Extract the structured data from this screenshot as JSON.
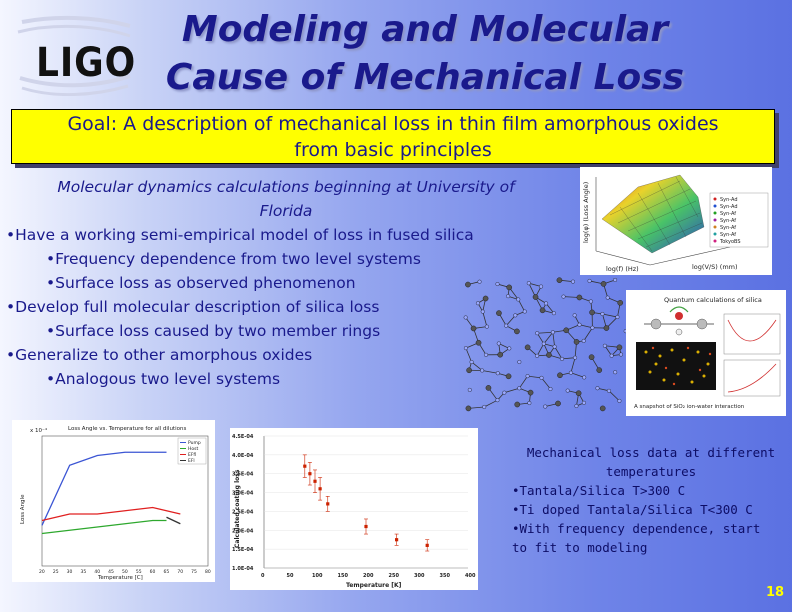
{
  "logo": {
    "text": "LIGO"
  },
  "title": {
    "line1": "Modeling and Molecular",
    "line2": "Cause of Mechanical Loss"
  },
  "goal": {
    "line1": "Goal: A description of mechanical loss in thin film amorphous oxides",
    "line2": "from basic principles"
  },
  "intro": {
    "line1": "Molecular dynamics calculations beginning at University of",
    "line2": "Florida"
  },
  "bullets": [
    {
      "level": 1,
      "text": "Have a working semi-empirical model of loss in fused silica"
    },
    {
      "level": 2,
      "text": "Frequency dependence from two level systems"
    },
    {
      "level": 2,
      "text": "Surface loss as observed phenomenon"
    },
    {
      "level": 1,
      "text": "Develop full molecular description of silica loss"
    },
    {
      "level": 2,
      "text": "Surface loss caused by two member rings"
    },
    {
      "level": 1,
      "text": "Generalize to other amorphous oxides"
    },
    {
      "level": 2,
      "text": "Analogous two level systems"
    }
  ],
  "surface_plot": {
    "zlabel": "log(φ) (Loss Angle)",
    "xlabel": "log(f) (Hz)",
    "ylabel": "log(V/S) (mm)",
    "legend": [
      "Syn-Ad",
      "Syn-Ad",
      "Syn-Af",
      "Syn-Af",
      "Syn-Af",
      "Syn-Af",
      "TokyoBS"
    ]
  },
  "quantum_panel": {
    "title": "Quantum calculations of silica",
    "caption": "A snapshot of SiO₂ ion-water interaction"
  },
  "chart_left": {
    "title": "Loss Angle vs. Temperature for all dilutions",
    "scale_label": "x 10⁻⁴",
    "ylabel": "Loss Angle",
    "xlabel": "Temperature [C]",
    "x_ticks": [
      "20",
      "25",
      "30",
      "35",
      "40",
      "45",
      "50",
      "55",
      "60",
      "65",
      "70",
      "75",
      "80"
    ],
    "legend": [
      "Pump",
      "Host",
      "EFfl",
      "EFl"
    ],
    "colors": [
      "#3b55d4",
      "#2ea82e",
      "#e02020",
      "#333333"
    ]
  },
  "chart_right": {
    "ylabel": "Calculated coating loss",
    "xlabel": "Temperature [K]",
    "y_ticks": [
      "1.0E-04",
      "1.5E-04",
      "2.0E-04",
      "2.5E-04",
      "3.0E-04",
      "3.5E-04",
      "4.0E-04",
      "4.5E-04"
    ],
    "x_ticks": [
      "0",
      "50",
      "100",
      "150",
      "200",
      "250",
      "300",
      "350",
      "400"
    ],
    "marker_color": "#cc2200"
  },
  "chart_data": [
    {
      "type": "line",
      "title": "Loss Angle vs. Temperature for all dilutions",
      "xlabel": "Temperature [C]",
      "ylabel": "Loss Angle",
      "xlim": [
        20,
        80
      ],
      "ylim": [
        0,
        8
      ],
      "x": [
        20,
        30,
        40,
        50,
        60,
        65,
        70
      ],
      "series": [
        {
          "name": "Pump",
          "values": [
            2.5,
            6.2,
            6.8,
            7.0,
            7.0,
            7.0,
            null
          ]
        },
        {
          "name": "Host",
          "values": [
            2.0,
            2.2,
            2.4,
            2.6,
            2.8,
            2.8,
            null
          ]
        },
        {
          "name": "EFfl",
          "values": [
            2.8,
            3.2,
            3.2,
            3.4,
            3.6,
            3.4,
            3.2
          ]
        },
        {
          "name": "EFl",
          "values": [
            null,
            null,
            null,
            null,
            null,
            3.0,
            2.6
          ]
        }
      ]
    },
    {
      "type": "scatter",
      "xlabel": "Temperature [K]",
      "ylabel": "Calculated coating loss",
      "xlim": [
        0,
        400
      ],
      "ylim": [
        0.0001,
        0.00045
      ],
      "x": [
        80,
        90,
        100,
        110,
        125,
        200,
        260,
        320
      ],
      "values": [
        0.00037,
        0.00035,
        0.00033,
        0.00031,
        0.00027,
        0.00021,
        0.000175,
        0.00016
      ],
      "errors": [
        3e-05,
        3e-05,
        3e-05,
        3e-05,
        2e-05,
        2e-05,
        1.5e-05,
        1.5e-05
      ]
    }
  ],
  "mech_loss": {
    "line1": "Mechanical loss data at different",
    "line2": "temperatures",
    "items": [
      "Tantala/Silica T>300 C",
      "Ti doped Tantala/Silica T<300 C",
      "With frequency dependence, start",
      "to fit to modeling"
    ]
  },
  "page_number": "18"
}
